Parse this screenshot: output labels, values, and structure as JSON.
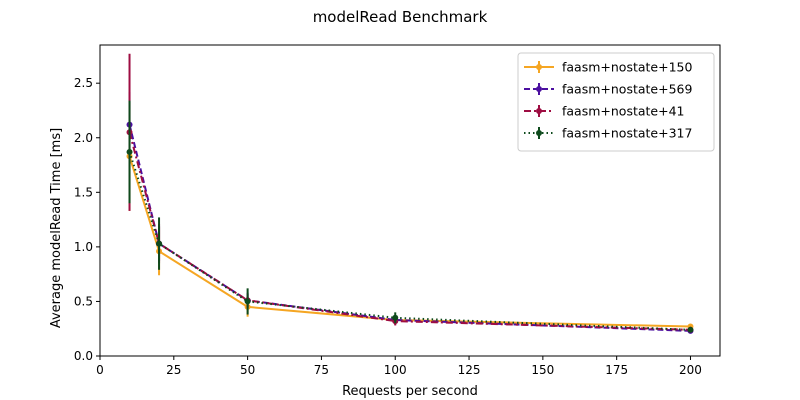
{
  "chart_data": {
    "type": "line",
    "title": "modelRead Benchmark",
    "xlabel": "Requests per second",
    "ylabel": "Average modelRead Time [ms]",
    "xlim": [
      0,
      210
    ],
    "ylim": [
      0,
      2.85
    ],
    "x_ticks": [
      0,
      25,
      50,
      75,
      100,
      125,
      150,
      175,
      200
    ],
    "y_ticks": [
      0.0,
      0.5,
      1.0,
      1.5,
      2.0,
      2.5
    ],
    "grid": false,
    "legend_position": "top-right",
    "x": [
      10,
      20,
      50,
      100,
      200
    ],
    "series": [
      {
        "name": "faasm+nostate+150",
        "color": "#f5a623",
        "line_style": "solid",
        "values": [
          1.83,
          0.96,
          0.45,
          0.33,
          0.27
        ],
        "errors": [
          0.5,
          0.22,
          0.09,
          0.04,
          0.02
        ]
      },
      {
        "name": "faasm+nostate+569",
        "color": "#4b0fa0",
        "line_style": "dashed",
        "values": [
          2.12,
          1.03,
          0.51,
          0.33,
          0.23
        ],
        "errors": [
          0.3,
          0.16,
          0.07,
          0.04,
          0.02
        ]
      },
      {
        "name": "faasm+nostate+41",
        "color": "#9e0d42",
        "line_style": "dashdot",
        "values": [
          2.05,
          1.03,
          0.51,
          0.32,
          0.24
        ],
        "errors": [
          0.72,
          0.18,
          0.06,
          0.04,
          0.02
        ]
      },
      {
        "name": "faasm+nostate+317",
        "color": "#0e4a1c",
        "line_style": "dotted",
        "values": [
          1.87,
          1.03,
          0.5,
          0.35,
          0.24
        ],
        "errors": [
          0.47,
          0.24,
          0.12,
          0.05,
          0.02
        ]
      }
    ]
  }
}
